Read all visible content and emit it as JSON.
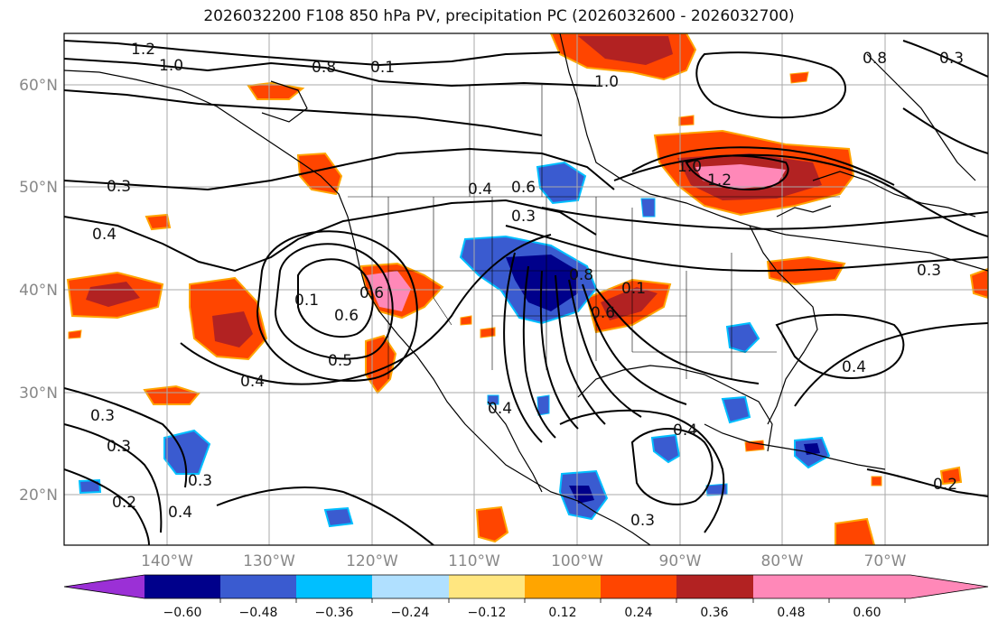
{
  "title": "2026032200 F108 850 hPa PV, precipitation PC (2026032600 - 2026032700)",
  "lat_labels": [
    "60°N",
    "50°N",
    "40°N",
    "30°N",
    "20°N"
  ],
  "lon_labels": [
    "140°W",
    "130°W",
    "120°W",
    "110°W",
    "100°W",
    "90°W",
    "80°W",
    "70°W"
  ],
  "contour_labels": [
    "1.2",
    "1.0",
    "0.8",
    "0.1",
    "1.0",
    "0.8",
    "0.3",
    "0.4",
    "0.6",
    "0.4",
    "0.3",
    "1.0",
    "1.2",
    "0.3",
    "0.1",
    "0.6",
    "0.6",
    "0.5",
    "0.4",
    "0.1",
    "0.6",
    "0.8",
    "0.3",
    "0.4",
    "0.3",
    "0.4",
    "0.3",
    "0.2",
    "0.4",
    "0.3",
    "0.2",
    "0.4",
    "0.3"
  ],
  "colorbar": {
    "tick_labels": [
      "−0.60",
      "−0.48",
      "−0.36",
      "−0.24",
      "−0.12",
      "0.12",
      "0.24",
      "0.36",
      "0.48",
      "0.60"
    ],
    "colors": [
      "#9b30d6",
      "#00008b",
      "#3a5bd0",
      "#00bfff",
      "#b0e0ff",
      "#ffffff",
      "#ffe680",
      "#ffa500",
      "#ff4500",
      "#b22222",
      "#ff88b8"
    ]
  }
}
